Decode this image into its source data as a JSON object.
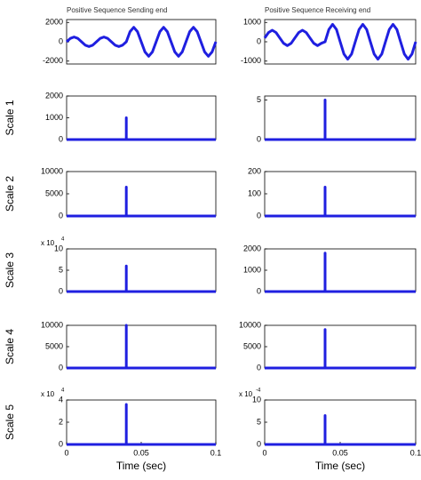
{
  "chart_data": [
    {
      "type": "line",
      "title": "Positive Sequence Sending end",
      "color": "#1f1fe0",
      "x": [
        0,
        0.0025,
        0.005,
        0.0075,
        0.01,
        0.0125,
        0.015,
        0.0175,
        0.02,
        0.0225,
        0.025,
        0.0275,
        0.03,
        0.0325,
        0.035,
        0.0375,
        0.04,
        0.0425,
        0.045,
        0.0475,
        0.05,
        0.0525,
        0.055,
        0.0575,
        0.06,
        0.0625,
        0.065,
        0.0675,
        0.07,
        0.0725,
        0.075,
        0.0775,
        0.08,
        0.0825,
        0.085,
        0.0875,
        0.09,
        0.0925,
        0.095,
        0.0975,
        0.1
      ],
      "values": [
        0,
        350,
        500,
        350,
        0,
        -350,
        -500,
        -350,
        0,
        350,
        500,
        350,
        0,
        -350,
        -500,
        -350,
        0,
        1050,
        1500,
        1050,
        0,
        -1050,
        -1500,
        -1050,
        0,
        1050,
        1500,
        1050,
        0,
        -1050,
        -1500,
        -1050,
        0,
        1050,
        1500,
        1050,
        0,
        -1050,
        -1500,
        -1050,
        0
      ],
      "xlim": [
        0,
        0.1
      ],
      "ylim": [
        -2300,
        2300
      ],
      "yticks": [
        -2000,
        0,
        2000
      ]
    },
    {
      "type": "line",
      "title": "Positive Sequence Receiving end",
      "color": "#1f1fe0",
      "x": [
        0,
        0.0025,
        0.005,
        0.0075,
        0.01,
        0.0125,
        0.015,
        0.0175,
        0.02,
        0.0225,
        0.025,
        0.0275,
        0.03,
        0.0325,
        0.035,
        0.0375,
        0.04,
        0.0425,
        0.045,
        0.0475,
        0.05,
        0.0525,
        0.055,
        0.0575,
        0.06,
        0.0625,
        0.065,
        0.0675,
        0.07,
        0.0725,
        0.075,
        0.0775,
        0.08,
        0.0825,
        0.085,
        0.0875,
        0.09,
        0.0925,
        0.095,
        0.0975,
        0.1
      ],
      "values": [
        200,
        480,
        600,
        480,
        200,
        -80,
        -200,
        -80,
        200,
        480,
        600,
        480,
        200,
        -80,
        -200,
        -80,
        0,
        640,
        900,
        640,
        0,
        -640,
        -900,
        -640,
        0,
        640,
        900,
        640,
        0,
        -640,
        -900,
        -640,
        0,
        640,
        900,
        640,
        0,
        -640,
        -900,
        -640,
        0
      ],
      "xlim": [
        0,
        0.1
      ],
      "ylim": [
        -1150,
        1150
      ],
      "yticks": [
        -1000,
        0,
        1000
      ]
    },
    {
      "type": "line",
      "ylabel": "Scale 1",
      "color": "#1f1fe0",
      "x": [
        0,
        0.04,
        0.04,
        0.04,
        0.1
      ],
      "values": [
        0,
        0,
        1000,
        0,
        0
      ],
      "xlim": [
        0,
        0.1
      ],
      "ylim": [
        0,
        2000
      ],
      "yticks": [
        0,
        1000,
        2000
      ]
    },
    {
      "type": "line",
      "color": "#1f1fe0",
      "x": [
        0,
        0.04,
        0.04,
        0.04,
        0.1
      ],
      "values": [
        0,
        0,
        5,
        0,
        0
      ],
      "xlim": [
        0,
        0.1
      ],
      "ylim": [
        0,
        5.5
      ],
      "yticks": [
        0,
        5
      ]
    },
    {
      "type": "line",
      "ylabel": "Scale 2",
      "color": "#1f1fe0",
      "x": [
        0,
        0.04,
        0.04,
        0.04,
        0.1
      ],
      "values": [
        0,
        0,
        6500,
        0,
        0
      ],
      "xlim": [
        0,
        0.1
      ],
      "ylim": [
        0,
        10000
      ],
      "yticks": [
        0,
        5000,
        10000
      ]
    },
    {
      "type": "line",
      "color": "#1f1fe0",
      "x": [
        0,
        0.04,
        0.04,
        0.04,
        0.1
      ],
      "values": [
        0,
        0,
        130,
        0,
        0
      ],
      "xlim": [
        0,
        0.1
      ],
      "ylim": [
        0,
        200
      ],
      "yticks": [
        0,
        100,
        200
      ]
    },
    {
      "type": "line",
      "ylabel": "Scale 3",
      "color": "#1f1fe0",
      "x": [
        0,
        0.04,
        0.04,
        0.04,
        0.1
      ],
      "values": [
        0,
        0,
        60000,
        0,
        0
      ],
      "xlim": [
        0,
        0.1
      ],
      "ylim": [
        0,
        100000
      ],
      "y_exponent": "x 10",
      "y_exponent_power": "4",
      "yticks": [
        0,
        {
          "value": 50000,
          "label": "5"
        },
        {
          "value": 100000,
          "label": "10"
        }
      ]
    },
    {
      "type": "line",
      "color": "#1f1fe0",
      "x": [
        0,
        0.04,
        0.04,
        0.04,
        0.1
      ],
      "values": [
        0,
        0,
        1800,
        0,
        0
      ],
      "xlim": [
        0,
        0.1
      ],
      "ylim": [
        0,
        2000
      ],
      "yticks": [
        0,
        1000,
        2000
      ]
    },
    {
      "type": "line",
      "ylabel": "Scale 4",
      "color": "#1f1fe0",
      "x": [
        0,
        0.04,
        0.04,
        0.04,
        0.1
      ],
      "values": [
        0,
        0,
        10000,
        0,
        0
      ],
      "xlim": [
        0,
        0.1
      ],
      "ylim": [
        0,
        10000
      ],
      "yticks": [
        0,
        5000,
        10000
      ]
    },
    {
      "type": "line",
      "color": "#1f1fe0",
      "x": [
        0,
        0.04,
        0.04,
        0.04,
        0.1
      ],
      "values": [
        0,
        0,
        9000,
        0,
        0
      ],
      "xlim": [
        0,
        0.1
      ],
      "ylim": [
        0,
        10000
      ],
      "yticks": [
        0,
        5000,
        10000
      ]
    },
    {
      "type": "line",
      "ylabel": "Scale 5",
      "xlabel": "Time (sec)",
      "color": "#1f1fe0",
      "x": [
        0,
        0.04,
        0.04,
        0.04,
        0.1
      ],
      "values": [
        0,
        0,
        36000,
        0,
        0
      ],
      "xlim": [
        0,
        0.1
      ],
      "ylim": [
        0,
        40000
      ],
      "y_exponent": "x 10",
      "y_exponent_power": "4",
      "yticks": [
        0,
        {
          "value": 20000,
          "label": "2"
        },
        {
          "value": 40000,
          "label": "4"
        }
      ],
      "xticks": [
        0,
        0.05,
        0.1
      ]
    },
    {
      "type": "line",
      "xlabel": "Time (sec)",
      "color": "#1f1fe0",
      "x": [
        0,
        0.04,
        0.04,
        0.04,
        0.1
      ],
      "values": [
        0,
        0,
        0.00065,
        0,
        0
      ],
      "xlim": [
        0,
        0.1
      ],
      "ylim": [
        0,
        0.001
      ],
      "y_exponent": "x 10",
      "y_exponent_power": "-4",
      "yticks": [
        0,
        {
          "value": 0.0005,
          "label": "5"
        },
        {
          "value": 0.001,
          "label": "10"
        }
      ],
      "xticks": [
        0,
        0.05,
        0.1
      ]
    }
  ]
}
